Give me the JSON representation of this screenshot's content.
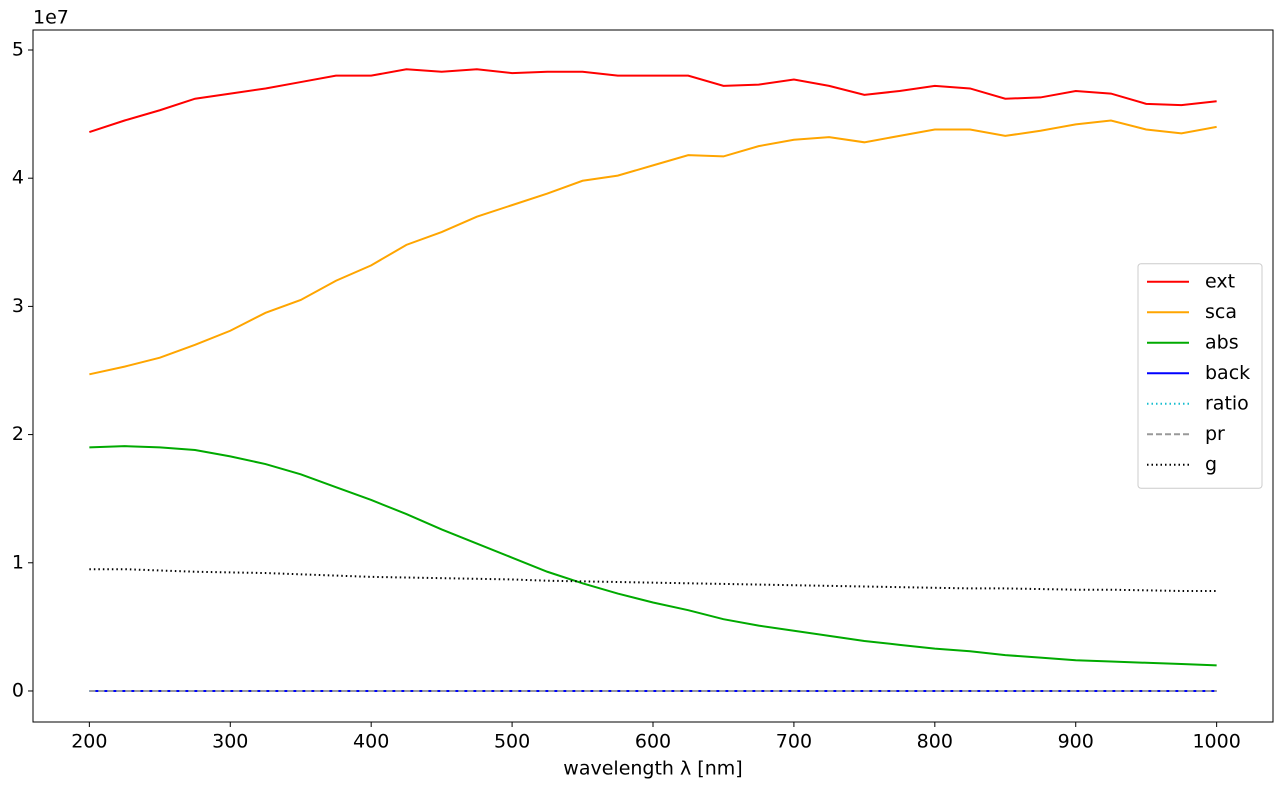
{
  "chart_data": {
    "type": "line",
    "x": [
      200,
      225,
      250,
      275,
      300,
      325,
      350,
      375,
      400,
      425,
      450,
      475,
      500,
      525,
      550,
      575,
      600,
      625,
      650,
      675,
      700,
      725,
      750,
      775,
      800,
      825,
      850,
      875,
      900,
      925,
      950,
      975,
      1000
    ],
    "series": [
      {
        "name": "ext",
        "color": "#ff0000",
        "linestyle": "solid",
        "values": [
          4.36,
          4.45,
          4.53,
          4.62,
          4.66,
          4.7,
          4.75,
          4.8,
          4.8,
          4.85,
          4.83,
          4.85,
          4.82,
          4.83,
          4.83,
          4.8,
          4.8,
          4.8,
          4.72,
          4.73,
          4.77,
          4.72,
          4.65,
          4.68,
          4.72,
          4.7,
          4.62,
          4.63,
          4.68,
          4.66,
          4.58,
          4.57,
          4.6
        ]
      },
      {
        "name": "sca",
        "color": "#ffa500",
        "linestyle": "solid",
        "values": [
          2.47,
          2.53,
          2.6,
          2.7,
          2.81,
          2.95,
          3.05,
          3.2,
          3.32,
          3.48,
          3.58,
          3.7,
          3.79,
          3.88,
          3.98,
          4.02,
          4.1,
          4.18,
          4.17,
          4.25,
          4.3,
          4.32,
          4.28,
          4.33,
          4.38,
          4.38,
          4.33,
          4.37,
          4.42,
          4.45,
          4.38,
          4.35,
          4.4
        ]
      },
      {
        "name": "abs",
        "color": "#00aa00",
        "linestyle": "solid",
        "values": [
          1.9,
          1.91,
          1.9,
          1.88,
          1.83,
          1.77,
          1.69,
          1.59,
          1.49,
          1.38,
          1.26,
          1.15,
          1.04,
          0.93,
          0.84,
          0.76,
          0.69,
          0.63,
          0.56,
          0.51,
          0.47,
          0.43,
          0.39,
          0.36,
          0.33,
          0.31,
          0.28,
          0.26,
          0.24,
          0.23,
          0.22,
          0.21,
          0.2
        ]
      },
      {
        "name": "back",
        "color": "#0000ff",
        "linestyle": "solid",
        "values": [
          0,
          0,
          0,
          0,
          0,
          0,
          0,
          0,
          0,
          0,
          0,
          0,
          0,
          0,
          0,
          0,
          0,
          0,
          0,
          0,
          0,
          0,
          0,
          0,
          0,
          0,
          0,
          0,
          0,
          0,
          0,
          0,
          0
        ]
      },
      {
        "name": "ratio",
        "color": "#17becf",
        "linestyle": "dotted",
        "values": [
          0,
          0,
          0,
          0,
          0,
          0,
          0,
          0,
          0,
          0,
          0,
          0,
          0,
          0,
          0,
          0,
          0,
          0,
          0,
          0,
          0,
          0,
          0,
          0,
          0,
          0,
          0,
          0,
          0,
          0,
          0,
          0,
          0
        ]
      },
      {
        "name": "pr",
        "color": "#999999",
        "linestyle": "dashed",
        "values": [
          0,
          0,
          0,
          0,
          0,
          0,
          0,
          0,
          0,
          0,
          0,
          0,
          0,
          0,
          0,
          0,
          0,
          0,
          0,
          0,
          0,
          0,
          0,
          0,
          0,
          0,
          0,
          0,
          0,
          0,
          0,
          0,
          0
        ]
      },
      {
        "name": "g",
        "color": "#000000",
        "linestyle": "dotted",
        "values": [
          0.95,
          0.95,
          0.94,
          0.93,
          0.925,
          0.92,
          0.91,
          0.9,
          0.89,
          0.885,
          0.88,
          0.875,
          0.87,
          0.86,
          0.855,
          0.85,
          0.845,
          0.84,
          0.835,
          0.83,
          0.825,
          0.82,
          0.815,
          0.81,
          0.805,
          0.8,
          0.8,
          0.795,
          0.79,
          0.79,
          0.785,
          0.78,
          0.78
        ]
      }
    ],
    "xlabel": "wavelength λ [nm]",
    "y_offset_label": "1e7",
    "xlim": [
      160,
      1040
    ],
    "xticks": [
      200,
      300,
      400,
      500,
      600,
      700,
      800,
      900,
      1000
    ],
    "ylim": [
      -0.242,
      5.156
    ],
    "yticks": [
      0,
      1,
      2,
      3,
      4,
      5
    ],
    "grid": false,
    "legend": "center right"
  }
}
